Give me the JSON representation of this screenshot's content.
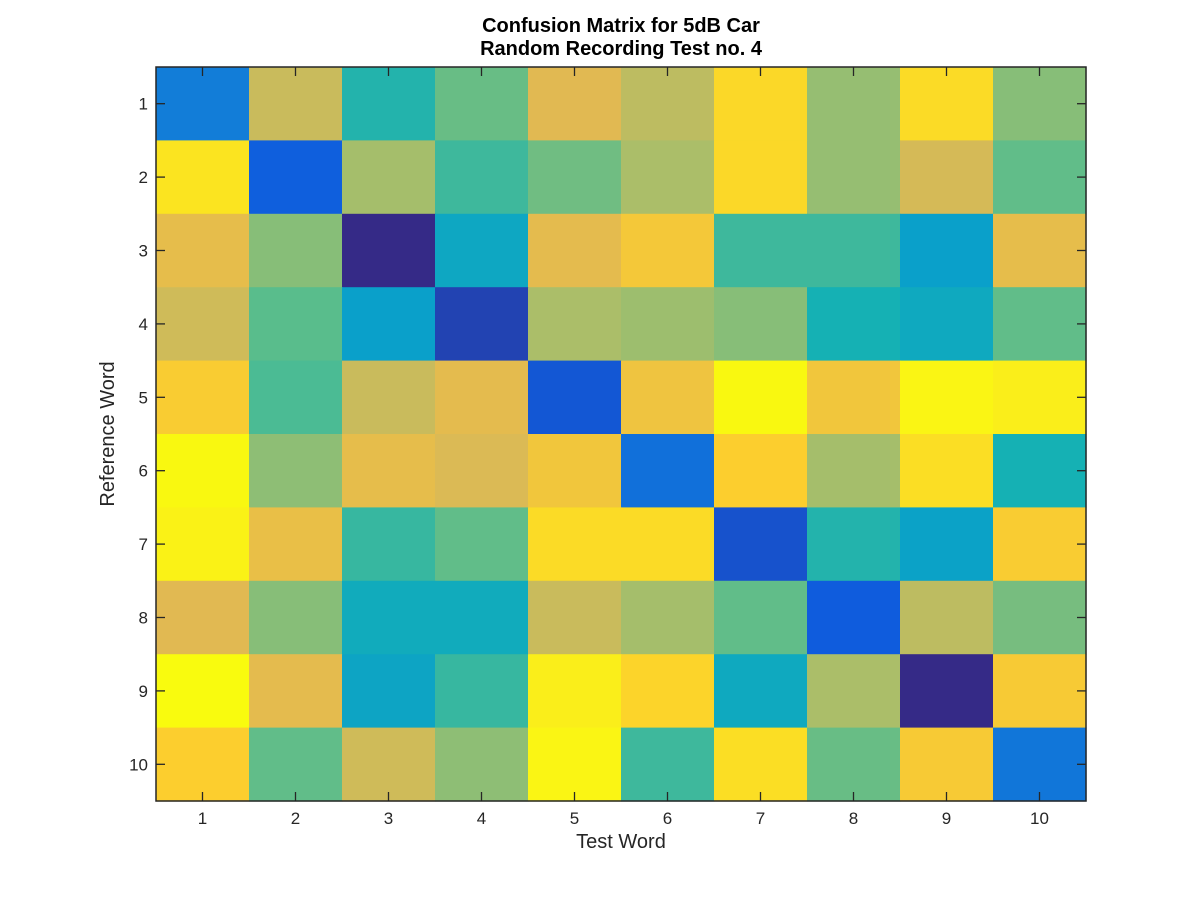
{
  "chart_data": {
    "type": "heatmap",
    "title": [
      "Confusion Matrix for 5dB Car",
      "Random Recording Test no. 4"
    ],
    "xlabel": "Test Word",
    "ylabel": "Reference Word",
    "x_categories": [
      "1",
      "2",
      "3",
      "4",
      "5",
      "6",
      "7",
      "8",
      "9",
      "10"
    ],
    "y_categories": [
      "1",
      "2",
      "3",
      "4",
      "5",
      "6",
      "7",
      "8",
      "9",
      "10"
    ],
    "colormap": "parula",
    "grid": false,
    "values": [
      [
        0.2,
        0.66,
        0.42,
        0.52,
        0.7,
        0.64,
        0.83,
        0.58,
        0.84,
        0.56
      ],
      [
        0.87,
        0.11,
        0.6,
        0.46,
        0.53,
        0.61,
        0.83,
        0.58,
        0.68,
        0.51
      ],
      [
        0.72,
        0.56,
        0.0,
        0.35,
        0.71,
        0.77,
        0.46,
        0.46,
        0.32,
        0.72
      ],
      [
        0.67,
        0.5,
        0.32,
        0.05,
        0.61,
        0.59,
        0.56,
        0.4,
        0.36,
        0.51
      ],
      [
        0.79,
        0.48,
        0.66,
        0.71,
        0.09,
        0.75,
        0.98,
        0.76,
        0.95,
        0.9
      ],
      [
        0.98,
        0.57,
        0.72,
        0.69,
        0.76,
        0.16,
        0.8,
        0.6,
        0.85,
        0.4
      ],
      [
        0.93,
        0.73,
        0.45,
        0.51,
        0.84,
        0.84,
        0.08,
        0.42,
        0.33,
        0.79
      ],
      [
        0.7,
        0.56,
        0.37,
        0.37,
        0.66,
        0.6,
        0.51,
        0.1,
        0.64,
        0.54
      ],
      [
        1.0,
        0.71,
        0.34,
        0.45,
        0.9,
        0.82,
        0.36,
        0.61,
        0.0,
        0.78
      ],
      [
        0.8,
        0.51,
        0.67,
        0.57,
        0.95,
        0.46,
        0.85,
        0.52,
        0.78,
        0.18
      ]
    ]
  }
}
